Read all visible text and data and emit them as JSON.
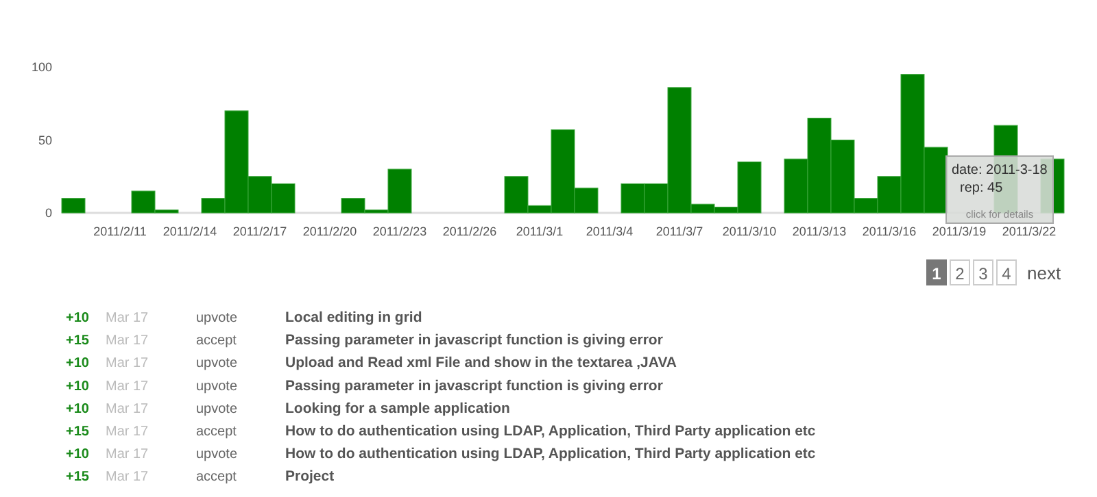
{
  "chart_data": {
    "type": "bar",
    "categories": [
      null,
      null,
      "2011/2/11",
      null,
      null,
      "2011/2/14",
      null,
      null,
      "2011/2/17",
      null,
      null,
      "2011/2/20",
      null,
      null,
      "2011/2/23",
      null,
      null,
      "2011/2/26",
      null,
      null,
      "2011/3/1",
      null,
      null,
      "2011/3/4",
      null,
      null,
      "2011/3/7",
      null,
      null,
      "2011/3/10",
      null,
      null,
      "2011/3/13",
      null,
      null,
      "2011/3/16",
      null,
      null,
      "2011/3/19",
      null,
      null,
      "2011/3/22",
      null
    ],
    "values": [
      10,
      null,
      null,
      15,
      2,
      null,
      10,
      70,
      25,
      20,
      null,
      null,
      10,
      2,
      30,
      null,
      null,
      null,
      null,
      25,
      5,
      57,
      17,
      null,
      20,
      20,
      86,
      6,
      4,
      35,
      null,
      37,
      65,
      50,
      10,
      25,
      95,
      45,
      null,
      null,
      60,
      null,
      37
    ],
    "color": "#008000",
    "ylim": [
      0,
      100
    ],
    "yticks": [
      0,
      50,
      100
    ],
    "grid": false,
    "annotations": [
      "date: 2011-3-18",
      "rep: 45",
      "click for details",
      "1",
      "2",
      "3",
      "4",
      "next",
      "+10",
      "Mar 17",
      "upvote",
      "Local editing in grid",
      "+15",
      "Mar 17",
      "accept",
      "Passing parameter in javascript function is giving error",
      "+10",
      "Mar 17",
      "upvote",
      "Upload and Read xml File and show in the textarea ,JAVA",
      "+10",
      "Mar 17",
      "upvote",
      "Passing parameter in javascript function is giving error",
      "+10",
      "Mar 17",
      "upvote",
      "Looking for a sample application",
      "+15",
      "Mar 17",
      "accept",
      "How to do authentication using LDAP, Application, Third Party application etc",
      "+10",
      "Mar 17",
      "upvote",
      "How to do authentication using LDAP, Application, Third Party application etc",
      "+15",
      "Mar 17",
      "accept",
      "Project"
    ]
  }
}
